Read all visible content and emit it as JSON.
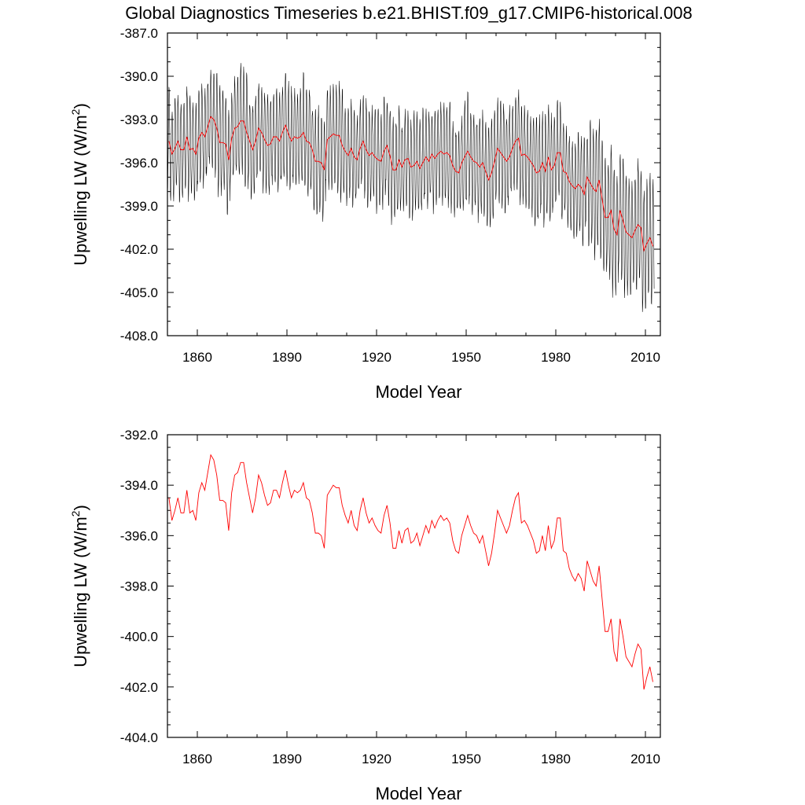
{
  "figure": {
    "title": "Global Diagnostics Timeseries b.e21.BHIST.f09_g17.CMIP6-historical.008"
  },
  "colors": {
    "monthly": "#000000",
    "annual": "#ff0000",
    "axis": "#000000"
  },
  "chart_data": [
    {
      "type": "line",
      "xlabel": "Model Year",
      "ylabel_main": "Upwelling LW (W/m",
      "ylabel_sup": "2",
      "ylabel_close": ")",
      "xlim": [
        1850,
        2015
      ],
      "ylim": [
        -408.0,
        -387.0
      ],
      "x_ticks": [
        1860,
        1890,
        1920,
        1950,
        1980,
        2010
      ],
      "x_tick_labels": [
        "1860",
        "1890",
        "1920",
        "1950",
        "1980",
        "2010"
      ],
      "y_ticks": [
        -387.0,
        -390.0,
        -393.0,
        -396.0,
        -399.0,
        -402.0,
        -405.0,
        -408.0
      ],
      "y_tick_labels": [
        "-387.0",
        "-390.0",
        "-393.0",
        "-396.0",
        "-399.0",
        "-402.0",
        "-405.0",
        "-408.0"
      ],
      "series": [
        {
          "kind": "monthly",
          "note_seasonal_max": [
            -391.2,
            -392.5
          ],
          "note_seasonal_min": [
            -399.5,
            -401.0,
            -404.5
          ]
        },
        {
          "kind": "annual",
          "x_start": 1850,
          "x_step": 1,
          "values_ref": "annual_mean"
        }
      ]
    },
    {
      "type": "line",
      "xlabel": "Model Year",
      "ylabel_main": "Upwelling LW (W/m",
      "ylabel_sup": "2",
      "ylabel_close": ")",
      "xlim": [
        1850,
        2015
      ],
      "ylim": [
        -404.0,
        -392.0
      ],
      "x_ticks": [
        1860,
        1890,
        1920,
        1950,
        1980,
        2010
      ],
      "x_tick_labels": [
        "1860",
        "1890",
        "1920",
        "1950",
        "1980",
        "2010"
      ],
      "y_ticks": [
        -392.0,
        -394.0,
        -396.0,
        -398.0,
        -400.0,
        -402.0,
        -404.0
      ],
      "y_tick_labels": [
        "-392.0",
        "-394.0",
        "-396.0",
        "-398.0",
        "-400.0",
        "-402.0",
        "-404.0"
      ],
      "series": [
        {
          "kind": "annual",
          "x_start": 1850,
          "x_step": 1,
          "values_ref": "annual_mean"
        }
      ]
    }
  ],
  "annual_mean": [
    -394.5,
    -395.4,
    -395.0,
    -394.5,
    -395.1,
    -395.1,
    -394.2,
    -395.1,
    -395.0,
    -395.4,
    -394.3,
    -393.9,
    -394.2,
    -393.5,
    -392.8,
    -393.0,
    -393.6,
    -394.6,
    -394.6,
    -394.7,
    -395.8,
    -394.3,
    -393.6,
    -393.5,
    -393.1,
    -393.1,
    -393.9,
    -394.5,
    -395.1,
    -394.5,
    -393.6,
    -393.9,
    -394.4,
    -394.8,
    -394.7,
    -394.2,
    -394.2,
    -394.5,
    -393.9,
    -393.4,
    -394.0,
    -394.5,
    -394.2,
    -394.3,
    -394.2,
    -393.9,
    -394.5,
    -394.6,
    -395.1,
    -395.9,
    -395.9,
    -396.0,
    -396.5,
    -394.4,
    -394.2,
    -394.0,
    -394.1,
    -394.1,
    -394.8,
    -395.2,
    -395.5,
    -395.0,
    -395.6,
    -395.8,
    -395.0,
    -394.5,
    -395.1,
    -395.5,
    -395.3,
    -395.6,
    -395.8,
    -395.9,
    -395.2,
    -394.8,
    -395.5,
    -396.5,
    -396.5,
    -395.8,
    -396.3,
    -395.8,
    -395.7,
    -396.3,
    -396.2,
    -395.9,
    -396.4,
    -396.0,
    -395.6,
    -395.9,
    -395.4,
    -395.7,
    -395.4,
    -395.2,
    -395.4,
    -395.3,
    -395.5,
    -396.2,
    -396.6,
    -396.7,
    -396.0,
    -395.6,
    -395.2,
    -395.6,
    -395.9,
    -396.0,
    -396.3,
    -396.0,
    -396.6,
    -397.2,
    -396.7,
    -395.9,
    -395.0,
    -395.3,
    -395.6,
    -395.9,
    -395.6,
    -395.0,
    -394.5,
    -394.3,
    -395.5,
    -395.4,
    -395.6,
    -395.9,
    -396.2,
    -396.7,
    -396.6,
    -396.0,
    -396.6,
    -395.6,
    -396.5,
    -396.2,
    -395.3,
    -395.3,
    -396.6,
    -396.7,
    -397.3,
    -397.6,
    -397.8,
    -397.5,
    -397.7,
    -398.2,
    -397.0,
    -397.4,
    -397.8,
    -398.0,
    -397.2,
    -398.5,
    -399.8,
    -399.8,
    -399.3,
    -400.6,
    -401.0,
    -399.3,
    -400.0,
    -400.8,
    -401.0,
    -401.2,
    -400.7,
    -400.3,
    -400.5,
    -402.1,
    -401.6,
    -401.2,
    -401.8
  ]
}
